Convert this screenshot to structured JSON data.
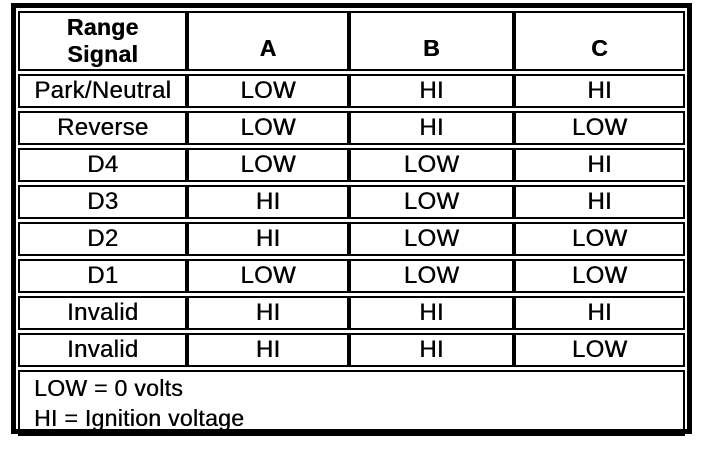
{
  "document": {
    "ink_color": "#000000",
    "paper_color": "#ffffff"
  },
  "table": {
    "header": {
      "range_signal": "Range\nSignal",
      "columns": [
        "A",
        "B",
        "C"
      ]
    },
    "rows": [
      [
        "Park/Neutral",
        "LOW",
        "HI",
        "HI"
      ],
      [
        "Reverse",
        "LOW",
        "HI",
        "LOW"
      ],
      [
        "D4",
        "LOW",
        "LOW",
        "HI"
      ],
      [
        "D3",
        "HI",
        "LOW",
        "HI"
      ],
      [
        "D2",
        "HI",
        "LOW",
        "LOW"
      ],
      [
        "D1",
        "LOW",
        "LOW",
        "LOW"
      ],
      [
        "Invalid",
        "HI",
        "HI",
        "HI"
      ],
      [
        "Invalid",
        "HI",
        "HI",
        "LOW"
      ]
    ],
    "legend": [
      "LOW = 0 volts",
      "HI = Ignition voltage"
    ]
  }
}
